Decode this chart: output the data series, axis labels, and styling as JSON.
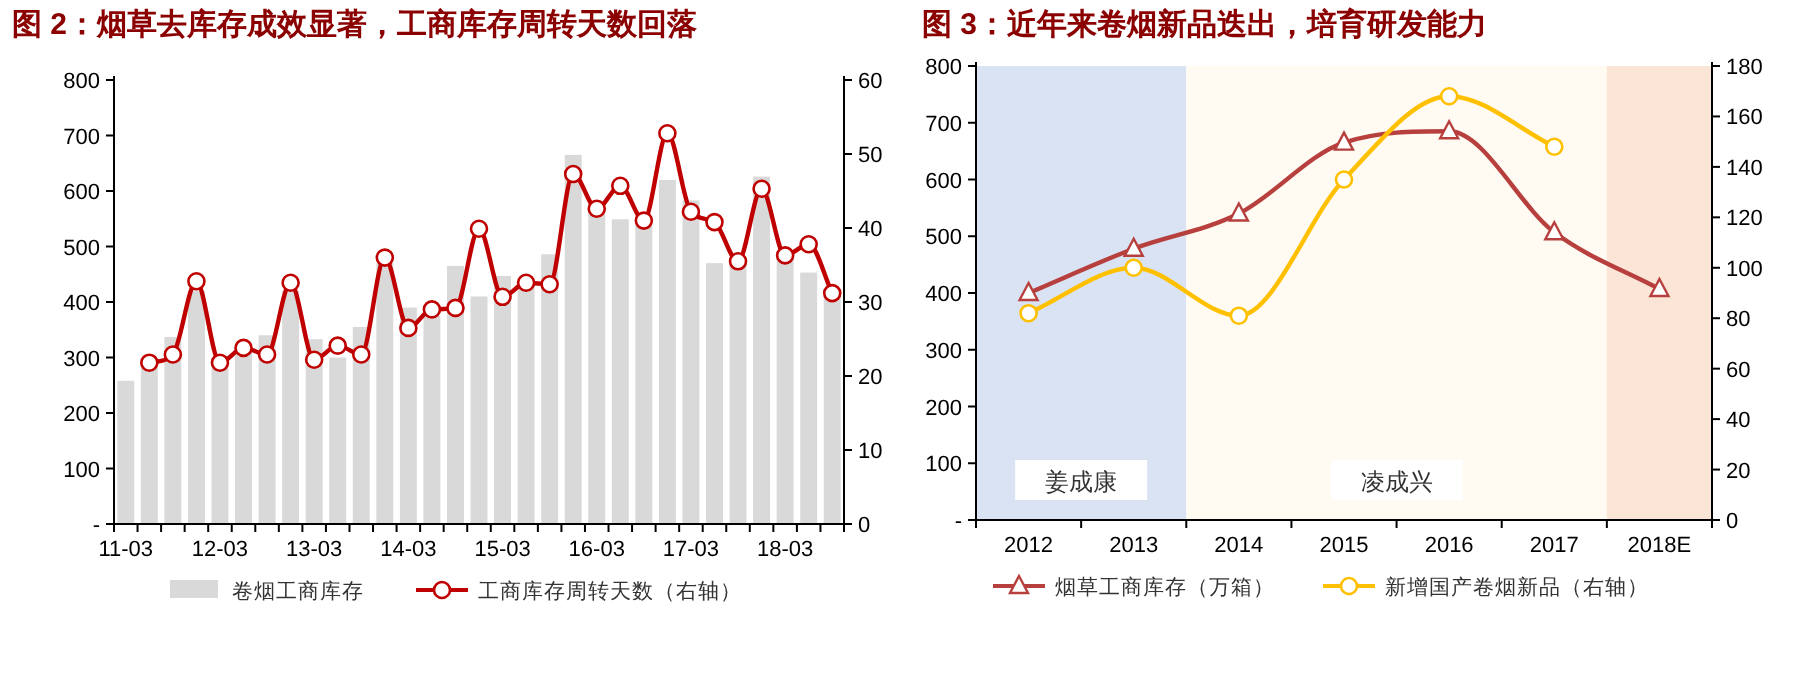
{
  "chart_data": [
    {
      "type": "bar",
      "title": "图 2：烟草去库存成效显著，工商库存周转天数回落",
      "categories": [
        "11-03",
        null,
        null,
        null,
        "12-03",
        null,
        null,
        null,
        "13-03",
        null,
        null,
        null,
        "14-03",
        null,
        null,
        null,
        "15-03",
        null,
        null,
        null,
        "16-03",
        null,
        null,
        null,
        "17-03",
        null,
        null,
        null,
        "18-03",
        null,
        null
      ],
      "series": [
        {
          "name": "卷烟工商库存",
          "type": "bar",
          "color": "#d9d9d9",
          "values": [
            258,
            291,
            337,
            420,
            300,
            310,
            340,
            420,
            333,
            300,
            355,
            470,
            390,
            375,
            465,
            410,
            447,
            437,
            486,
            665,
            583,
            549,
            540,
            620,
            583,
            470,
            475,
            626,
            486,
            453,
            420
          ]
        },
        {
          "name": "工商库存周转天数（右轴）",
          "type": "line",
          "axis": "y2",
          "color": "#c00000",
          "marker": "circle",
          "values": [
            null,
            21.8,
            22.9,
            32.8,
            21.8,
            23.8,
            22.9,
            32.6,
            22.2,
            24.1,
            22.9,
            36.0,
            26.5,
            29.0,
            29.2,
            39.9,
            30.7,
            32.6,
            32.4,
            47.3,
            42.6,
            45.7,
            41.0,
            52.8,
            42.2,
            40.8,
            35.5,
            45.3,
            36.3,
            37.8,
            31.2
          ]
        }
      ],
      "ylim": [
        0,
        800
      ],
      "yticks": [
        {
          "value": 0,
          "label": "-"
        },
        100,
        200,
        300,
        400,
        500,
        600,
        700,
        800
      ],
      "y2lim": [
        0,
        60
      ],
      "y2ticks": [
        0,
        10,
        20,
        30,
        40,
        50,
        60
      ],
      "legend": "bottom"
    },
    {
      "type": "line",
      "title": "图 3：近年来卷烟新品迭出，培育研发能力",
      "categories": [
        "2012",
        "2013",
        "2014",
        "2015",
        "2016",
        "2017",
        "2018E"
      ],
      "series": [
        {
          "name": "烟草工商库存（万箱）",
          "color": "#b7403e",
          "marker": "triangle",
          "values": [
            400,
            478,
            540,
            665,
            685,
            507,
            407
          ]
        },
        {
          "name": "新增国产卷烟新品（右轴）",
          "axis": "y2",
          "color": "#ffc000",
          "marker": "circle",
          "values": [
            82,
            100,
            81,
            135,
            168,
            148,
            null
          ]
        }
      ],
      "bands": [
        {
          "axis": "x",
          "from": "2012",
          "to": "2013",
          "label": "姜成康",
          "color": "#dae3f3"
        },
        {
          "axis": "x",
          "from": "2014",
          "to": "2017",
          "label": "凌成兴",
          "color": "#fffaf2"
        },
        {
          "axis": "x",
          "from": "2018E",
          "to": "2018E",
          "color": "#fbe5d6"
        }
      ],
      "ylim": [
        0,
        800
      ],
      "yticks": [
        {
          "value": 0,
          "label": "-"
        },
        100,
        200,
        300,
        400,
        500,
        600,
        700,
        800
      ],
      "y2lim": [
        0,
        180
      ],
      "y2ticks": [
        0,
        20,
        40,
        60,
        80,
        100,
        120,
        140,
        160,
        180
      ],
      "legend": "bottom"
    }
  ]
}
